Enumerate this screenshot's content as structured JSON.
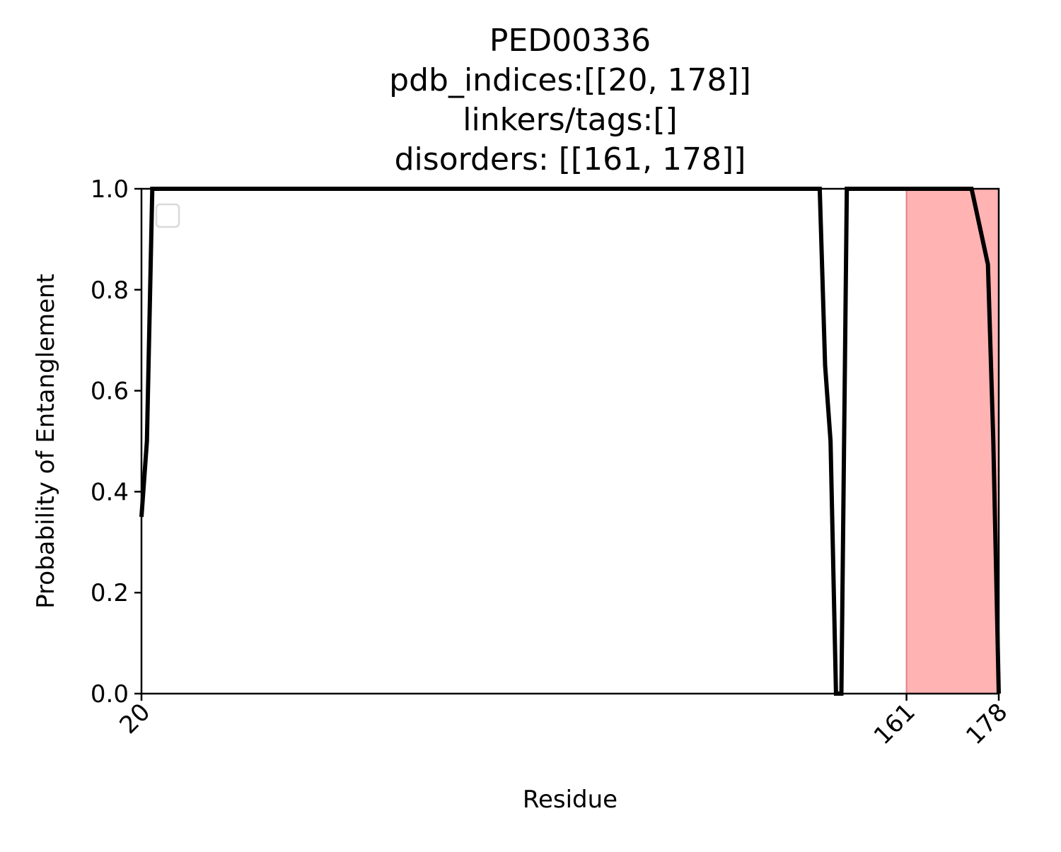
{
  "chart_data": {
    "type": "line",
    "title_lines": [
      "PED00336",
      "pdb_indices:[[20, 178]]",
      "linkers/tags:[]",
      "disorders: [[161, 178]]"
    ],
    "xlabel": "Residue",
    "ylabel": "Probability of Entanglement",
    "xlim": [
      20,
      178
    ],
    "ylim": [
      0.0,
      1.0
    ],
    "x_ticks": [
      {
        "value": 20,
        "label": "20"
      },
      {
        "value": 161,
        "label": "161"
      },
      {
        "value": 178,
        "label": "178"
      }
    ],
    "y_ticks": [
      {
        "value": 0.0,
        "label": "0.0"
      },
      {
        "value": 0.2,
        "label": "0.2"
      },
      {
        "value": 0.4,
        "label": "0.4"
      },
      {
        "value": 0.6,
        "label": "0.6"
      },
      {
        "value": 0.8,
        "label": "0.8"
      },
      {
        "value": 1.0,
        "label": "1.0"
      }
    ],
    "disorder_regions": [
      [
        161,
        178
      ]
    ],
    "legend": "top-left (empty)",
    "series": [
      {
        "name": "Probability of Entanglement",
        "color": "#000000",
        "points": [
          [
            20,
            0.35
          ],
          [
            21,
            0.5
          ],
          [
            22,
            1.0
          ],
          [
            145,
            1.0
          ],
          [
            146,
            0.65
          ],
          [
            147,
            0.5
          ],
          [
            148,
            0.0
          ],
          [
            149,
            0.0
          ],
          [
            150,
            1.0
          ],
          [
            173,
            1.0
          ],
          [
            176,
            0.85
          ],
          [
            177,
            0.5
          ],
          [
            178,
            0.0
          ]
        ]
      }
    ],
    "colors": {
      "line": "#000000",
      "disorder_fill": "#ffb3b3",
      "disorder_edge": "#e08080",
      "axes": "#000000",
      "legend_border": "#d9d9d9"
    }
  }
}
